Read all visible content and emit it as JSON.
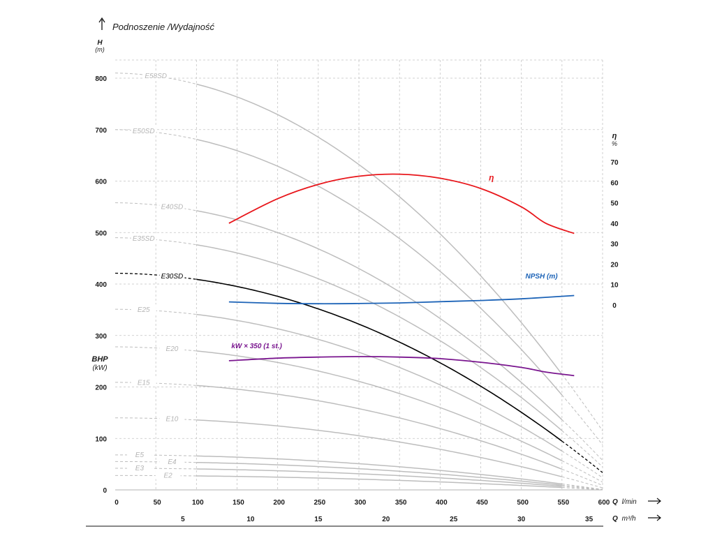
{
  "chart_data": {
    "type": "line",
    "title": "Podnoszenie /Wydajność",
    "y_left": {
      "label": "H",
      "unit": "(m)",
      "ylim": [
        0,
        800
      ],
      "ticks": [
        "0",
        "100",
        "200",
        "300",
        "400",
        "500",
        "600",
        "700",
        "800"
      ]
    },
    "y_left_secondary": {
      "label": "BHP",
      "unit": "(kW)"
    },
    "y_right": {
      "label": "η",
      "unit": "%",
      "ylim": [
        0,
        70
      ],
      "ticks": [
        "0",
        "10",
        "20",
        "30",
        "40",
        "50",
        "60",
        "70"
      ]
    },
    "x_main": {
      "label": "Q",
      "unit": "l/min",
      "xlim": [
        0,
        600
      ],
      "ticks": [
        "0",
        "50",
        "100",
        "150",
        "200",
        "250",
        "300",
        "350",
        "400",
        "450",
        "500",
        "550",
        "600"
      ]
    },
    "x_secondary": {
      "label": "Q",
      "unit": "m³/h",
      "ticks": [
        "5",
        "10",
        "15",
        "20",
        "25",
        "30",
        "35"
      ]
    },
    "grid": true,
    "pump_curves": [
      {
        "name": "E58SD",
        "h0": 810,
        "label_q": 50,
        "emph": false
      },
      {
        "name": "E50SD",
        "h0": 700,
        "label_q": 35,
        "emph": false
      },
      {
        "name": "E40SD",
        "h0": 558,
        "label_q": 70,
        "emph": false
      },
      {
        "name": "E35SD",
        "h0": 490,
        "label_q": 35,
        "emph": false
      },
      {
        "name": "E30SD",
        "h0": 421,
        "label_q": 70,
        "emph": true
      },
      {
        "name": "E25",
        "h0": 351,
        "label_q": 35,
        "emph": false
      },
      {
        "name": "E20",
        "h0": 278,
        "label_q": 70,
        "emph": false
      },
      {
        "name": "E15",
        "h0": 209,
        "label_q": 35,
        "emph": false
      },
      {
        "name": "E10",
        "h0": 140,
        "label_q": 70,
        "emph": false
      },
      {
        "name": "E5",
        "h0": 68,
        "label_q": 30,
        "emph": false
      },
      {
        "name": "E4",
        "h0": 55,
        "label_q": 70,
        "emph": false
      },
      {
        "name": "E3",
        "h0": 42,
        "label_q": 30,
        "emph": false
      },
      {
        "name": "E2",
        "h0": 28,
        "label_q": 65,
        "emph": false
      }
    ],
    "efficiency": {
      "name": "η",
      "axis": "right",
      "points": [
        [
          140,
          40
        ],
        [
          200,
          52
        ],
        [
          250,
          59
        ],
        [
          300,
          63
        ],
        [
          350,
          64
        ],
        [
          400,
          62
        ],
        [
          450,
          57
        ],
        [
          500,
          48
        ],
        [
          530,
          40
        ],
        [
          565,
          35
        ]
      ]
    },
    "npsh": {
      "name": "NPSH (m)",
      "axis": "right",
      "points": [
        [
          140,
          1.5
        ],
        [
          200,
          0.8
        ],
        [
          250,
          0.6
        ],
        [
          300,
          0.7
        ],
        [
          350,
          1.0
        ],
        [
          400,
          1.6
        ],
        [
          450,
          2.2
        ],
        [
          500,
          3.0
        ],
        [
          565,
          4.6
        ]
      ]
    },
    "power": {
      "name": "kW × 350 (1 st.)",
      "axis": "left",
      "points": [
        [
          140,
          251
        ],
        [
          200,
          256
        ],
        [
          250,
          258
        ],
        [
          300,
          259
        ],
        [
          350,
          258
        ],
        [
          400,
          255
        ],
        [
          450,
          248
        ],
        [
          500,
          238
        ],
        [
          530,
          229
        ],
        [
          565,
          222
        ]
      ]
    },
    "colors": {
      "efficiency": "#e8161b",
      "npsh": "#1c63b7",
      "power": "#7a168f",
      "emph": "#000000",
      "curve": "#bdbdbd",
      "curve_label": "#b4b4b4",
      "grid": "#c4c4c4"
    }
  }
}
